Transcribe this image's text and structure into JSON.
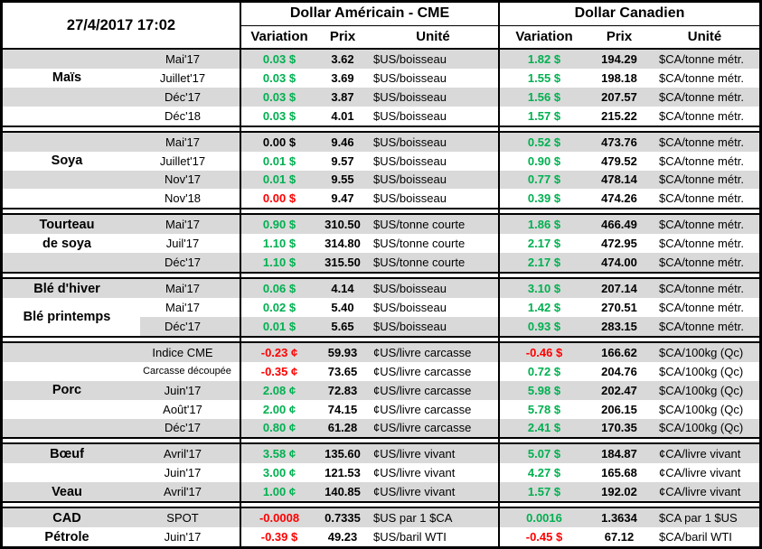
{
  "header": {
    "datetime": "27/4/2017 17:02",
    "us": {
      "title": "Dollar Américain - CME",
      "cols": [
        "Variation",
        "Prix",
        "Unité"
      ]
    },
    "ca": {
      "title": "Dollar Canadien",
      "cols": [
        "Variation",
        "Prix",
        "Unité"
      ]
    }
  },
  "palette": {
    "positive": "#00B050",
    "negative": "#FF0000",
    "neutral": "#000000",
    "row_stripe": "#D9D9D9"
  },
  "sections": [
    {
      "id": "mais",
      "rows": [
        {
          "commodity": "",
          "month": "Mai'17",
          "shade": "gray",
          "us": {
            "v": "0.03 $",
            "c": "pos",
            "p": "3.62",
            "u": "$US/boisseau"
          },
          "ca": {
            "v": "1.82 $",
            "c": "pos",
            "p": "194.29",
            "u": "$CA/tonne métr."
          }
        },
        {
          "commodity": "Maïs",
          "month": "Juillet'17",
          "shade": "white",
          "us": {
            "v": "0.03 $",
            "c": "pos",
            "p": "3.69",
            "u": "$US/boisseau"
          },
          "ca": {
            "v": "1.55 $",
            "c": "pos",
            "p": "198.18",
            "u": "$CA/tonne métr."
          }
        },
        {
          "commodity": "",
          "month": "Déc'17",
          "shade": "gray",
          "us": {
            "v": "0.03 $",
            "c": "pos",
            "p": "3.87",
            "u": "$US/boisseau"
          },
          "ca": {
            "v": "1.56 $",
            "c": "pos",
            "p": "207.57",
            "u": "$CA/tonne métr."
          }
        },
        {
          "commodity": "",
          "month": "Déc'18",
          "shade": "white",
          "us": {
            "v": "0.03 $",
            "c": "pos",
            "p": "4.01",
            "u": "$US/boisseau"
          },
          "ca": {
            "v": "1.57 $",
            "c": "pos",
            "p": "215.22",
            "u": "$CA/tonne métr."
          }
        }
      ]
    },
    {
      "id": "soya",
      "rows": [
        {
          "commodity": "",
          "month": "Mai'17",
          "shade": "gray",
          "us": {
            "v": "0.00 $",
            "c": "neu",
            "p": "9.46",
            "u": "$US/boisseau"
          },
          "ca": {
            "v": "0.52 $",
            "c": "pos",
            "p": "473.76",
            "u": "$CA/tonne métr."
          }
        },
        {
          "commodity": "Soya",
          "month": "Juillet'17",
          "shade": "white",
          "us": {
            "v": "0.01 $",
            "c": "pos",
            "p": "9.57",
            "u": "$US/boisseau"
          },
          "ca": {
            "v": "0.90 $",
            "c": "pos",
            "p": "479.52",
            "u": "$CA/tonne métr."
          }
        },
        {
          "commodity": "",
          "month": "Nov'17",
          "shade": "gray",
          "us": {
            "v": "0.01 $",
            "c": "pos",
            "p": "9.55",
            "u": "$US/boisseau"
          },
          "ca": {
            "v": "0.77 $",
            "c": "pos",
            "p": "478.14",
            "u": "$CA/tonne métr."
          }
        },
        {
          "commodity": "",
          "month": "Nov'18",
          "shade": "white",
          "us": {
            "v": "0.00 $",
            "c": "neg",
            "p": "9.47",
            "u": "$US/boisseau"
          },
          "ca": {
            "v": "0.39 $",
            "c": "pos",
            "p": "474.26",
            "u": "$CA/tonne métr."
          }
        }
      ]
    },
    {
      "id": "tourteau-de-soya",
      "rows": [
        {
          "commodity": "Tourteau",
          "month": "Mai'17",
          "shade": "gray",
          "us": {
            "v": "0.90 $",
            "c": "pos",
            "p": "310.50",
            "u": "$US/tonne courte"
          },
          "ca": {
            "v": "1.86 $",
            "c": "pos",
            "p": "466.49",
            "u": "$CA/tonne métr."
          }
        },
        {
          "commodity": "de soya",
          "month": "Juil'17",
          "shade": "white",
          "us": {
            "v": "1.10 $",
            "c": "pos",
            "p": "314.80",
            "u": "$US/tonne courte"
          },
          "ca": {
            "v": "2.17 $",
            "c": "pos",
            "p": "472.95",
            "u": "$CA/tonne métr."
          }
        },
        {
          "commodity": "",
          "month": "Déc'17",
          "shade": "gray",
          "us": {
            "v": "1.10 $",
            "c": "pos",
            "p": "315.50",
            "u": "$US/tonne courte"
          },
          "ca": {
            "v": "2.17 $",
            "c": "pos",
            "p": "474.00",
            "u": "$CA/tonne métr."
          }
        }
      ]
    },
    {
      "id": "ble",
      "overlay": {
        "label": "Blé printemps",
        "start": 1,
        "span": 2
      },
      "rows": [
        {
          "commodity": "Blé d'hiver",
          "month": "Mai'17",
          "shade": "gray",
          "us": {
            "v": "0.06 $",
            "c": "pos",
            "p": "4.14",
            "u": "$US/boisseau"
          },
          "ca": {
            "v": "3.10 $",
            "c": "pos",
            "p": "207.14",
            "u": "$CA/tonne métr."
          }
        },
        {
          "commodity": "",
          "month": "Mai'17",
          "shade": "white",
          "us": {
            "v": "0.02 $",
            "c": "pos",
            "p": "5.40",
            "u": "$US/boisseau"
          },
          "ca": {
            "v": "1.42 $",
            "c": "pos",
            "p": "270.51",
            "u": "$CA/tonne métr."
          }
        },
        {
          "commodity": "",
          "month": "Déc'17",
          "shade": "graypart",
          "us": {
            "v": "0.01 $",
            "c": "pos",
            "p": "5.65",
            "u": "$US/boisseau"
          },
          "ca": {
            "v": "0.93 $",
            "c": "pos",
            "p": "283.15",
            "u": "$CA/tonne métr."
          }
        }
      ]
    },
    {
      "id": "porc",
      "rows": [
        {
          "commodity": "",
          "month": "Indice CME",
          "shade": "gray",
          "us": {
            "v": "-0.23 ¢",
            "c": "neg",
            "p": "59.93",
            "u": "¢US/livre carcasse"
          },
          "ca": {
            "v": "-0.46 $",
            "c": "neg",
            "p": "166.62",
            "u": "$CA/100kg (Qc)"
          }
        },
        {
          "commodity": "",
          "month": "Carcasse découpée",
          "small": true,
          "shade": "white",
          "us": {
            "v": "-0.35 ¢",
            "c": "neg",
            "p": "73.65",
            "u": "¢US/livre carcasse"
          },
          "ca": {
            "v": "0.72 $",
            "c": "pos",
            "p": "204.76",
            "u": "$CA/100kg (Qc)"
          }
        },
        {
          "commodity": "Porc",
          "month": "Juin'17",
          "shade": "gray",
          "us": {
            "v": "2.08 ¢",
            "c": "pos",
            "p": "72.83",
            "u": "¢US/livre carcasse"
          },
          "ca": {
            "v": "5.98 $",
            "c": "pos",
            "p": "202.47",
            "u": "$CA/100kg (Qc)"
          }
        },
        {
          "commodity": "",
          "month": "Août'17",
          "shade": "white",
          "us": {
            "v": "2.00 ¢",
            "c": "pos",
            "p": "74.15",
            "u": "¢US/livre carcasse"
          },
          "ca": {
            "v": "5.78 $",
            "c": "pos",
            "p": "206.15",
            "u": "$CA/100kg (Qc)"
          }
        },
        {
          "commodity": "",
          "month": "Déc'17",
          "shade": "gray",
          "us": {
            "v": "0.80 ¢",
            "c": "pos",
            "p": "61.28",
            "u": "¢US/livre carcasse"
          },
          "ca": {
            "v": "2.41 $",
            "c": "pos",
            "p": "170.35",
            "u": "$CA/100kg (Qc)"
          }
        }
      ]
    },
    {
      "id": "boeuf-veau",
      "rows": [
        {
          "commodity": "Bœuf",
          "month": "Avril'17",
          "shade": "gray",
          "us": {
            "v": "3.58 ¢",
            "c": "pos",
            "p": "135.60",
            "u": "¢US/livre vivant"
          },
          "ca": {
            "v": "5.07 $",
            "c": "pos",
            "p": "184.87",
            "u": "¢CA/livre vivant"
          }
        },
        {
          "commodity": "",
          "month": "Juin'17",
          "shade": "white",
          "us": {
            "v": "3.00 ¢",
            "c": "pos",
            "p": "121.53",
            "u": "¢US/livre vivant"
          },
          "ca": {
            "v": "4.27 $",
            "c": "pos",
            "p": "165.68",
            "u": "¢CA/livre vivant"
          }
        },
        {
          "commodity": "Veau",
          "month": "Avril'17",
          "shade": "gray",
          "us": {
            "v": "1.00 ¢",
            "c": "pos",
            "p": "140.85",
            "u": "¢US/livre vivant"
          },
          "ca": {
            "v": "1.57 $",
            "c": "pos",
            "p": "192.02",
            "u": "¢CA/livre vivant"
          }
        }
      ]
    },
    {
      "id": "cad-petrole",
      "rows": [
        {
          "commodity": "CAD",
          "month": "SPOT",
          "shade": "gray",
          "us": {
            "v": "-0.0008",
            "c": "neg",
            "p": "0.7335",
            "u": "$US par 1 $CA"
          },
          "ca": {
            "v": "0.0016",
            "c": "pos",
            "p": "1.3634",
            "u": "$CA par 1 $US"
          }
        },
        {
          "commodity": "Pétrole",
          "month": "Juin'17",
          "shade": "white",
          "us": {
            "v": "-0.39 $",
            "c": "neg",
            "p": "49.23",
            "u": "$US/baril WTI"
          },
          "ca": {
            "v": "-0.45 $",
            "c": "neg",
            "p": "67.12",
            "u": "$CA/baril WTI"
          }
        }
      ]
    }
  ]
}
